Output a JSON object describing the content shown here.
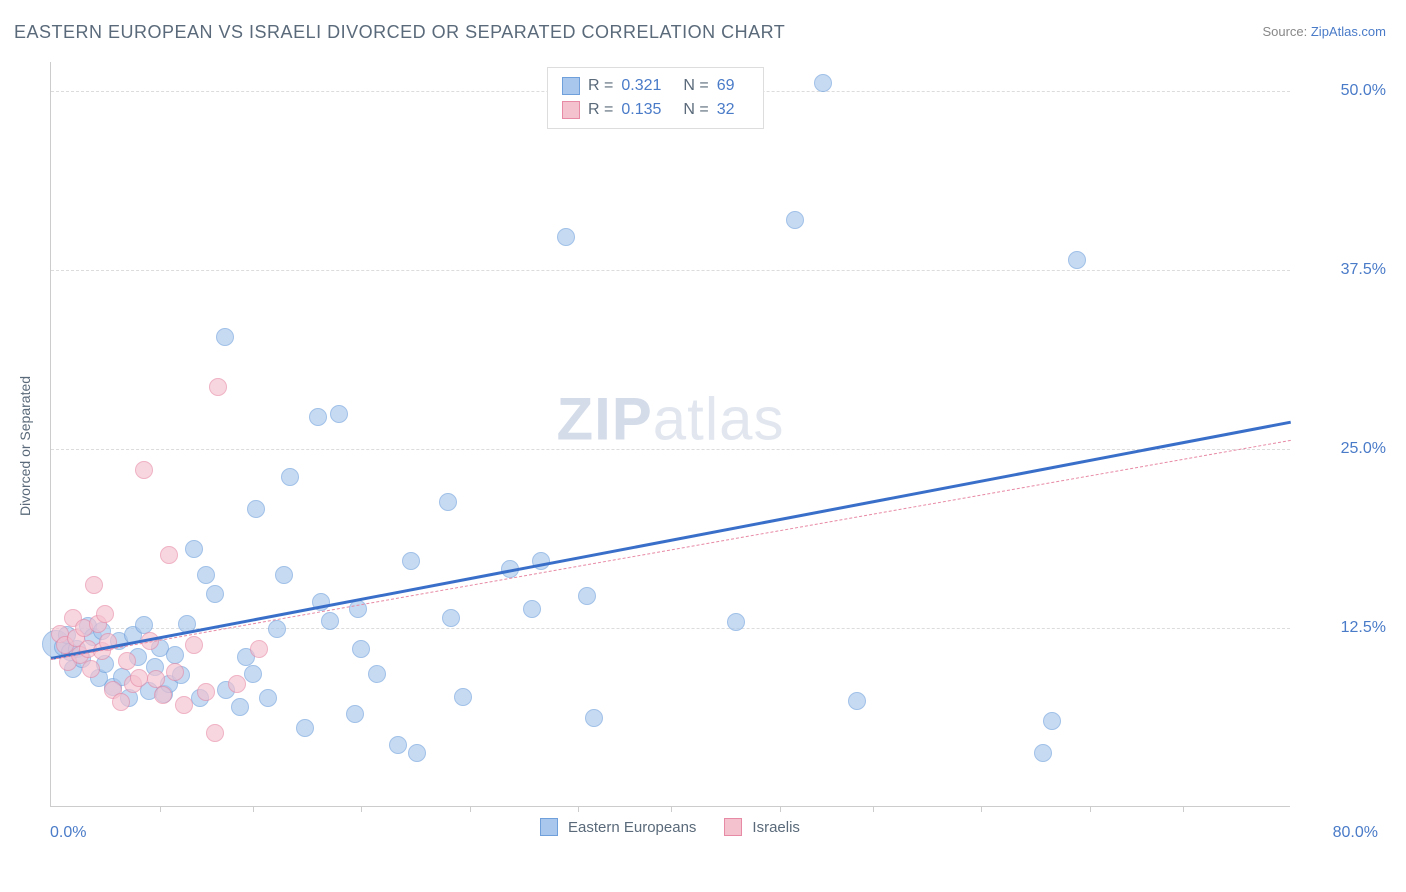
{
  "title": "EASTERN EUROPEAN VS ISRAELI DIVORCED OR SEPARATED CORRELATION CHART",
  "source_prefix": "Source: ",
  "source_link": "ZipAtlas.com",
  "ylabel": "Divorced or Separated",
  "watermark_bold": "ZIP",
  "watermark_light": "atlas",
  "chart": {
    "type": "scatter",
    "xlim": [
      0,
      80
    ],
    "ylim": [
      0,
      52
    ],
    "x_min_label": "0.0%",
    "x_max_label": "80.0%",
    "y_ticks": [
      {
        "v": 12.5,
        "label": "12.5%"
      },
      {
        "v": 25.0,
        "label": "25.0%"
      },
      {
        "v": 37.5,
        "label": "37.5%"
      },
      {
        "v": 50.0,
        "label": "50.0%"
      }
    ],
    "x_tick_positions": [
      7,
      13,
      20,
      27,
      34,
      40,
      47,
      53,
      60,
      67,
      73
    ],
    "background_color": "#ffffff",
    "grid_color": "#dcdcdc",
    "axis_color": "#cccccc",
    "series": [
      {
        "name": "Eastern Europeans",
        "fill": "#a9c7ec",
        "stroke": "#6fa0dc",
        "opacity": 0.65,
        "trend": {
          "x0": 0,
          "y0": 10.5,
          "x1": 80,
          "y1": 27.0,
          "color": "#3a6fc9",
          "width": 2.5,
          "dashed": false
        },
        "stats": {
          "R": "0.321",
          "N": "69"
        },
        "radius": 9,
        "points": [
          [
            0.3,
            11.4,
            14
          ],
          [
            0.8,
            11.2
          ],
          [
            1.0,
            12.0
          ],
          [
            1.2,
            10.8
          ],
          [
            1.4,
            9.6
          ],
          [
            1.7,
            11.0
          ],
          [
            2.0,
            10.3
          ],
          [
            2.4,
            12.6
          ],
          [
            2.7,
            11.9
          ],
          [
            3.1,
            9.0
          ],
          [
            3.3,
            12.3
          ],
          [
            3.5,
            10.0
          ],
          [
            4.0,
            8.4
          ],
          [
            4.4,
            11.6
          ],
          [
            4.6,
            9.1
          ],
          [
            5.0,
            7.6
          ],
          [
            5.3,
            12.0
          ],
          [
            5.6,
            10.5
          ],
          [
            6.0,
            12.7
          ],
          [
            6.3,
            8.1
          ],
          [
            6.7,
            9.8
          ],
          [
            7.0,
            11.1
          ],
          [
            7.3,
            7.9
          ],
          [
            7.6,
            8.6
          ],
          [
            8.0,
            10.6
          ],
          [
            8.4,
            9.2
          ],
          [
            8.8,
            12.8
          ],
          [
            9.2,
            18.0
          ],
          [
            9.6,
            7.6
          ],
          [
            10.0,
            16.2
          ],
          [
            10.6,
            14.9
          ],
          [
            11.2,
            32.8
          ],
          [
            11.3,
            8.2
          ],
          [
            12.2,
            7.0
          ],
          [
            12.6,
            10.5
          ],
          [
            13.0,
            9.3
          ],
          [
            13.2,
            20.8
          ],
          [
            14.0,
            7.6
          ],
          [
            14.6,
            12.4
          ],
          [
            15.0,
            16.2
          ],
          [
            15.4,
            23.0
          ],
          [
            16.4,
            5.5
          ],
          [
            17.2,
            27.2
          ],
          [
            17.4,
            14.3
          ],
          [
            18.0,
            13.0
          ],
          [
            18.6,
            27.4
          ],
          [
            19.6,
            6.5
          ],
          [
            19.8,
            13.8
          ],
          [
            20.0,
            11.0
          ],
          [
            21.0,
            9.3
          ],
          [
            22.4,
            4.3
          ],
          [
            23.2,
            17.2
          ],
          [
            23.6,
            3.8
          ],
          [
            25.6,
            21.3
          ],
          [
            25.8,
            13.2
          ],
          [
            26.6,
            7.7
          ],
          [
            29.6,
            16.6
          ],
          [
            31.0,
            13.8
          ],
          [
            31.6,
            17.2
          ],
          [
            33.2,
            39.8
          ],
          [
            34.6,
            14.7
          ],
          [
            35.0,
            6.2
          ],
          [
            44.2,
            12.9
          ],
          [
            48.0,
            41.0
          ],
          [
            49.8,
            50.5
          ],
          [
            52.0,
            7.4
          ],
          [
            64.0,
            3.8
          ],
          [
            64.6,
            6.0
          ],
          [
            66.2,
            38.2
          ]
        ]
      },
      {
        "name": "Israelis",
        "fill": "#f4c1cf",
        "stroke": "#e78aa5",
        "opacity": 0.65,
        "trend": {
          "x0": 0,
          "y0": 10.3,
          "x1": 80,
          "y1": 25.6,
          "color": "#e78aa5",
          "width": 1.2,
          "dashed": true
        },
        "stats": {
          "R": "0.135",
          "N": "32"
        },
        "radius": 9,
        "points": [
          [
            0.6,
            12.1
          ],
          [
            0.9,
            11.3
          ],
          [
            1.1,
            10.1
          ],
          [
            1.4,
            13.2
          ],
          [
            1.6,
            11.8
          ],
          [
            1.9,
            10.6
          ],
          [
            2.1,
            12.5
          ],
          [
            2.4,
            11.0
          ],
          [
            2.6,
            9.6
          ],
          [
            2.8,
            15.5
          ],
          [
            3.0,
            12.8
          ],
          [
            3.3,
            10.9
          ],
          [
            3.5,
            13.5
          ],
          [
            3.7,
            11.5
          ],
          [
            4.0,
            8.2
          ],
          [
            4.5,
            7.3
          ],
          [
            4.9,
            10.2
          ],
          [
            5.3,
            8.6
          ],
          [
            5.7,
            9.0
          ],
          [
            6.0,
            23.5
          ],
          [
            6.4,
            11.6
          ],
          [
            6.8,
            8.9
          ],
          [
            7.2,
            7.8
          ],
          [
            7.6,
            17.6
          ],
          [
            8.0,
            9.4
          ],
          [
            8.6,
            7.1
          ],
          [
            9.2,
            11.3
          ],
          [
            10.0,
            8.0
          ],
          [
            10.6,
            5.2
          ],
          [
            10.8,
            29.3
          ],
          [
            12.0,
            8.6
          ],
          [
            13.4,
            11.0
          ]
        ]
      }
    ],
    "legend_bottom": [
      {
        "swatch_fill": "#a9c7ec",
        "swatch_stroke": "#6fa0dc",
        "label": "Eastern Europeans"
      },
      {
        "swatch_fill": "#f4c1cf",
        "swatch_stroke": "#e78aa5",
        "label": "Israelis"
      }
    ]
  }
}
